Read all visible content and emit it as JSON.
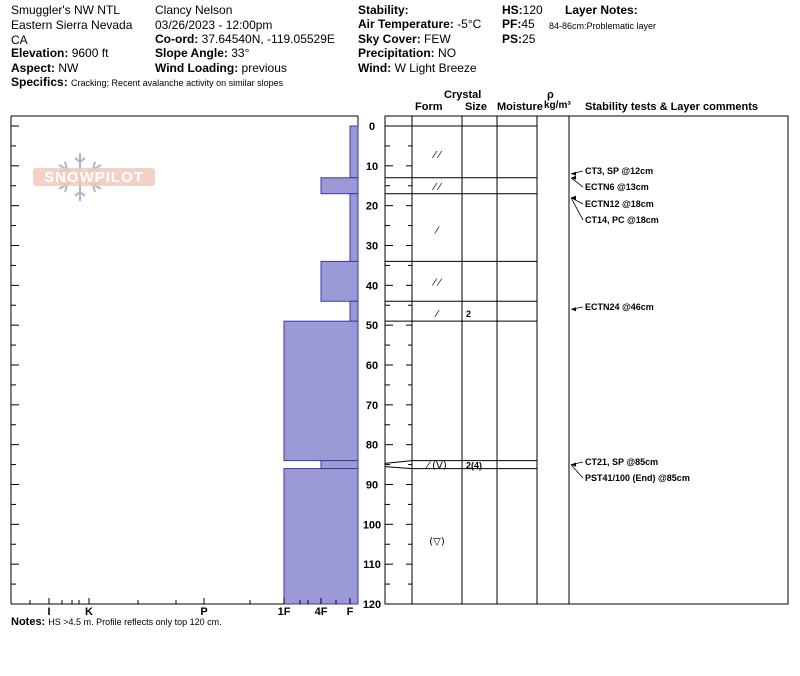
{
  "header": {
    "location": "Smuggler's NW NTL",
    "region": "Eastern Sierra Nevada",
    "state": "CA",
    "observer": "Clancy Nelson",
    "datetime": "03/26/2023 - 12:00pm",
    "elevation_label": "Elevation:",
    "elevation": "9600 ft",
    "aspect_label": "Aspect:",
    "aspect": "NW",
    "specifics_label": "Specifics:",
    "specifics": "Cracking; Recent avalanche activity on similar slopes",
    "coord_label": "Co-ord:",
    "coord": "37.64540N, -119.05529E",
    "slope_label": "Slope Angle:",
    "slope": "33°",
    "wind_loading_label": "Wind Loading:",
    "wind_loading": "previous",
    "stability_label": "Stability:",
    "air_temp_label": "Air Temperature:",
    "air_temp": "-5°C",
    "sky_label": "Sky Cover:",
    "sky": "FEW",
    "precip_label": "Precipitation:",
    "precip": "NO",
    "wind_label": "Wind:",
    "wind": "W Light Breeze",
    "hs_label": "HS:",
    "hs": "120",
    "pf_label": "PF:",
    "pf": "45",
    "ps_label": "PS:",
    "ps": "25",
    "layer_notes_label": "Layer Notes:",
    "layer_note": "84-86cm:Problematic layer"
  },
  "watermark": "SNOWPILOT",
  "columns": {
    "crystal": "Crystal",
    "form": "Form",
    "size": "Size",
    "moisture": "Moisture",
    "rho": "ρ",
    "rho_unit": "kg/m³",
    "stability": "Stability tests & Layer comments"
  },
  "notes": {
    "label": "Notes:",
    "text": "HS >4.5 m. Profile reflects only top 120 cm."
  },
  "chart_data": {
    "type": "snow-profile",
    "depth_axis": {
      "min": 0,
      "max": 120,
      "ticks": [
        0,
        10,
        20,
        30,
        40,
        50,
        60,
        70,
        80,
        90,
        100,
        110,
        120
      ]
    },
    "hardness_axis": {
      "labels": [
        "I",
        "K",
        "P",
        "1F",
        "4F",
        "F"
      ]
    },
    "hardness_profile": [
      {
        "top": 0,
        "bottom": 13,
        "hardness": "F"
      },
      {
        "top": 13,
        "bottom": 17,
        "hardness": "4F"
      },
      {
        "top": 17,
        "bottom": 34,
        "hardness": "F"
      },
      {
        "top": 34,
        "bottom": 44,
        "hardness": "4F"
      },
      {
        "top": 44,
        "bottom": 49,
        "hardness": "F"
      },
      {
        "top": 49,
        "bottom": 84,
        "hardness": "1F"
      },
      {
        "top": 84,
        "bottom": 86,
        "hardness": "4F"
      },
      {
        "top": 86,
        "bottom": 120,
        "hardness": "1F"
      }
    ],
    "layer_boundaries": [
      0,
      13,
      17,
      34,
      44,
      49,
      84,
      86
    ],
    "crystals": [
      {
        "depth": 7,
        "form": "⁄ ⁄",
        "size": ""
      },
      {
        "depth": 15,
        "form": "⁄ ⁄",
        "size": ""
      },
      {
        "depth": 26,
        "form": "⁄",
        "size": ""
      },
      {
        "depth": 39,
        "form": "⁄ ⁄",
        "size": ""
      },
      {
        "depth": 47,
        "form": "⁄",
        "size": "2"
      },
      {
        "depth": 85,
        "form": "⁄ (V)",
        "size": "2(4)"
      },
      {
        "depth": 104,
        "form": "(▽)",
        "size": ""
      }
    ],
    "stability_tests": [
      {
        "depth": 12,
        "label": "CT3, SP @12cm"
      },
      {
        "depth": 13,
        "label": "ECTN6 @13cm"
      },
      {
        "depth": 18,
        "label": "ECTN12 @18cm"
      },
      {
        "depth": 18,
        "label": "CT14, PC @18cm"
      },
      {
        "depth": 46,
        "label": "ECTN24 @46cm"
      },
      {
        "depth": 85,
        "label": "CT21, SP @85cm"
      },
      {
        "depth": 85,
        "label": "PST41/100 (End) @85cm"
      }
    ]
  }
}
